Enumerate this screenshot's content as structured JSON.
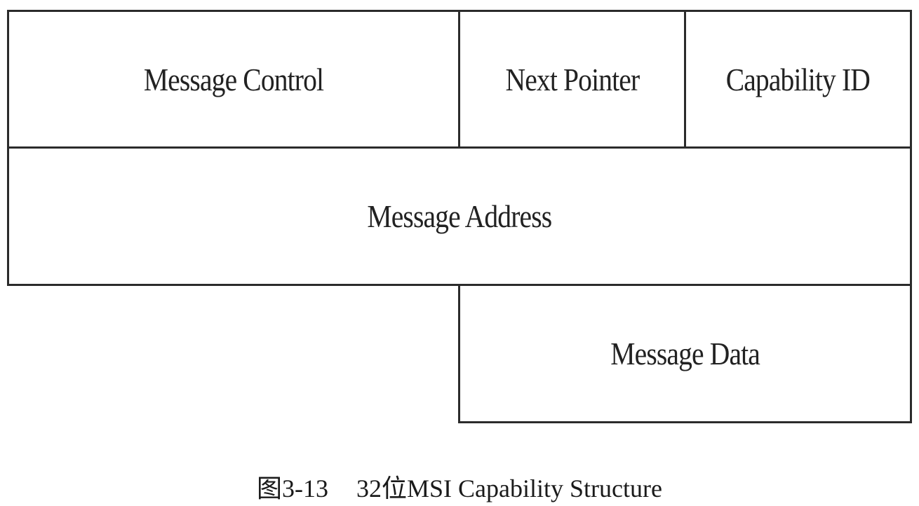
{
  "fields": {
    "message_control": "Message Control",
    "next_pointer": "Next Pointer",
    "capability_id": "Capability ID",
    "message_address": "Message Address",
    "message_data": "Message Data"
  },
  "caption": {
    "figure_number": "图3-13",
    "title": "32位MSI Capability Structure"
  }
}
